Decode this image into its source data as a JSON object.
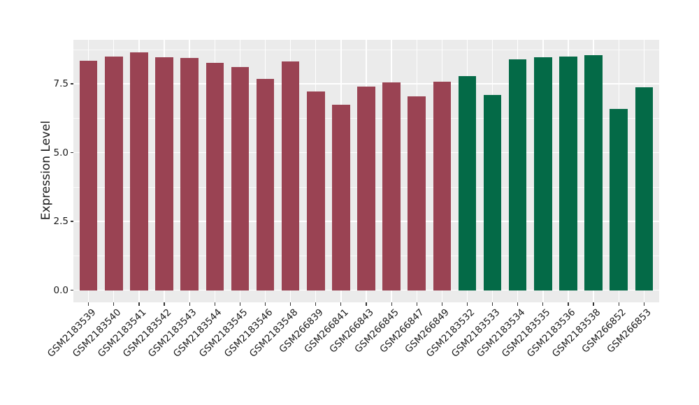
{
  "chart_data": {
    "type": "bar",
    "title": "",
    "xlabel": "",
    "ylabel": "Expression Level",
    "categories": [
      "GSM2183539",
      "GSM2183540",
      "GSM2183541",
      "GSM2183542",
      "GSM2183543",
      "GSM2183544",
      "GSM2183545",
      "GSM2183546",
      "GSM2183548",
      "GSM266839",
      "GSM266841",
      "GSM266843",
      "GSM266845",
      "GSM266847",
      "GSM266849",
      "GSM2183532",
      "GSM2183533",
      "GSM2183534",
      "GSM2183535",
      "GSM2183536",
      "GSM2183538",
      "GSM266852",
      "GSM266853"
    ],
    "values": [
      8.33,
      8.49,
      8.65,
      8.46,
      8.43,
      8.25,
      8.12,
      7.67,
      8.3,
      7.21,
      6.74,
      7.39,
      7.55,
      7.03,
      7.58,
      7.77,
      7.1,
      8.38,
      8.47,
      8.5,
      8.53,
      6.59,
      7.37
    ],
    "bar_groups": [
      0,
      0,
      0,
      0,
      0,
      0,
      0,
      0,
      0,
      0,
      0,
      0,
      0,
      0,
      0,
      1,
      1,
      1,
      1,
      1,
      1,
      1,
      1
    ],
    "group_colors": [
      "#9A4353",
      "#046A47"
    ],
    "ytick_labels": [
      "0.0",
      "2.5",
      "5.0",
      "7.5"
    ],
    "yticks": [
      0.0,
      2.5,
      5.0,
      7.5
    ],
    "yminor": [
      1.25,
      3.75,
      6.25,
      8.75
    ],
    "ylim": [
      -0.45,
      9.1
    ],
    "grid": true,
    "legend_position": "none",
    "panel_background": "#EBEBEB",
    "grid_color": "#FFFFFF",
    "axis_text_color": "#1a1a1a",
    "tick_mark_color": "#333333"
  }
}
